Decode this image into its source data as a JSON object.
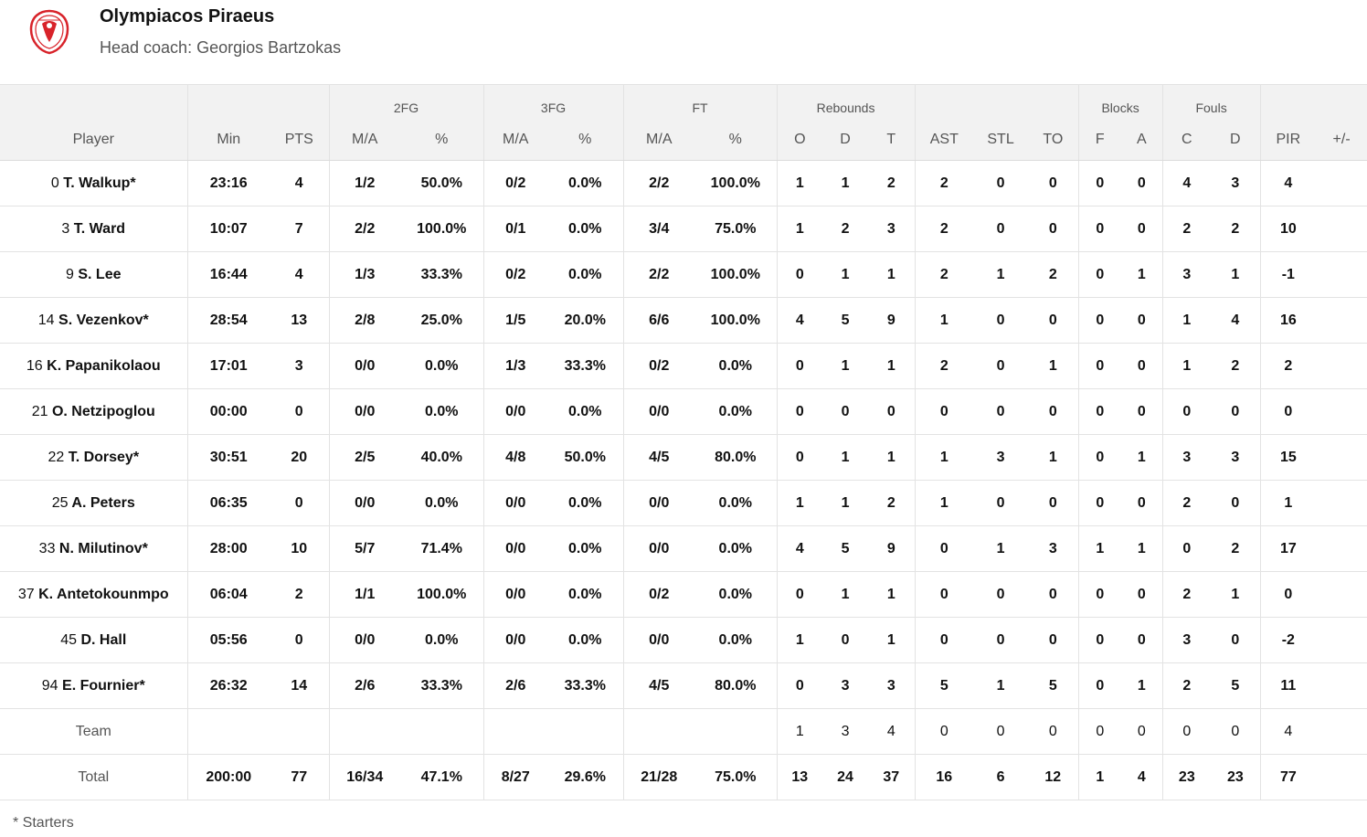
{
  "team": {
    "name": "Olympiacos Piraeus",
    "coach": "Head coach: Georgios Bartzokas",
    "logo_color": "#d8232a"
  },
  "groups": {
    "fg2": "2FG",
    "fg3": "3FG",
    "ft": "FT",
    "rebounds": "Rebounds",
    "blocks": "Blocks",
    "fouls": "Fouls"
  },
  "columns": {
    "player": "Player",
    "min": "Min",
    "pts": "PTS",
    "fg2_ma": "M/A",
    "fg2_pct": "%",
    "fg3_ma": "M/A",
    "fg3_pct": "%",
    "ft_ma": "M/A",
    "ft_pct": "%",
    "reb_o": "O",
    "reb_d": "D",
    "reb_t": "T",
    "ast": "AST",
    "stl": "STL",
    "to": "TO",
    "blk_f": "F",
    "blk_a": "A",
    "foul_c": "C",
    "foul_d": "D",
    "pir": "PIR",
    "pm": "+/-"
  },
  "players": [
    {
      "no": "0",
      "name": "T. Walkup*",
      "min": "23:16",
      "pts": "4",
      "fg2_ma": "1/2",
      "fg2_pct": "50.0%",
      "fg3_ma": "0/2",
      "fg3_pct": "0.0%",
      "ft_ma": "2/2",
      "ft_pct": "100.0%",
      "reb_o": "1",
      "reb_d": "1",
      "reb_t": "2",
      "ast": "2",
      "stl": "0",
      "to": "0",
      "blk_f": "0",
      "blk_a": "0",
      "foul_c": "4",
      "foul_d": "3",
      "pir": "4",
      "pm": ""
    },
    {
      "no": "3",
      "name": "T. Ward",
      "min": "10:07",
      "pts": "7",
      "fg2_ma": "2/2",
      "fg2_pct": "100.0%",
      "fg3_ma": "0/1",
      "fg3_pct": "0.0%",
      "ft_ma": "3/4",
      "ft_pct": "75.0%",
      "reb_o": "1",
      "reb_d": "2",
      "reb_t": "3",
      "ast": "2",
      "stl": "0",
      "to": "0",
      "blk_f": "0",
      "blk_a": "0",
      "foul_c": "2",
      "foul_d": "2",
      "pir": "10",
      "pm": ""
    },
    {
      "no": "9",
      "name": "S. Lee",
      "min": "16:44",
      "pts": "4",
      "fg2_ma": "1/3",
      "fg2_pct": "33.3%",
      "fg3_ma": "0/2",
      "fg3_pct": "0.0%",
      "ft_ma": "2/2",
      "ft_pct": "100.0%",
      "reb_o": "0",
      "reb_d": "1",
      "reb_t": "1",
      "ast": "2",
      "stl": "1",
      "to": "2",
      "blk_f": "0",
      "blk_a": "1",
      "foul_c": "3",
      "foul_d": "1",
      "pir": "-1",
      "pm": ""
    },
    {
      "no": "14",
      "name": "S. Vezenkov*",
      "min": "28:54",
      "pts": "13",
      "fg2_ma": "2/8",
      "fg2_pct": "25.0%",
      "fg3_ma": "1/5",
      "fg3_pct": "20.0%",
      "ft_ma": "6/6",
      "ft_pct": "100.0%",
      "reb_o": "4",
      "reb_d": "5",
      "reb_t": "9",
      "ast": "1",
      "stl": "0",
      "to": "0",
      "blk_f": "0",
      "blk_a": "0",
      "foul_c": "1",
      "foul_d": "4",
      "pir": "16",
      "pm": ""
    },
    {
      "no": "16",
      "name": "K. Papanikolaou",
      "min": "17:01",
      "pts": "3",
      "fg2_ma": "0/0",
      "fg2_pct": "0.0%",
      "fg3_ma": "1/3",
      "fg3_pct": "33.3%",
      "ft_ma": "0/2",
      "ft_pct": "0.0%",
      "reb_o": "0",
      "reb_d": "1",
      "reb_t": "1",
      "ast": "2",
      "stl": "0",
      "to": "1",
      "blk_f": "0",
      "blk_a": "0",
      "foul_c": "1",
      "foul_d": "2",
      "pir": "2",
      "pm": ""
    },
    {
      "no": "21",
      "name": "O. Netzipoglou",
      "min": "00:00",
      "pts": "0",
      "fg2_ma": "0/0",
      "fg2_pct": "0.0%",
      "fg3_ma": "0/0",
      "fg3_pct": "0.0%",
      "ft_ma": "0/0",
      "ft_pct": "0.0%",
      "reb_o": "0",
      "reb_d": "0",
      "reb_t": "0",
      "ast": "0",
      "stl": "0",
      "to": "0",
      "blk_f": "0",
      "blk_a": "0",
      "foul_c": "0",
      "foul_d": "0",
      "pir": "0",
      "pm": ""
    },
    {
      "no": "22",
      "name": "T. Dorsey*",
      "min": "30:51",
      "pts": "20",
      "fg2_ma": "2/5",
      "fg2_pct": "40.0%",
      "fg3_ma": "4/8",
      "fg3_pct": "50.0%",
      "ft_ma": "4/5",
      "ft_pct": "80.0%",
      "reb_o": "0",
      "reb_d": "1",
      "reb_t": "1",
      "ast": "1",
      "stl": "3",
      "to": "1",
      "blk_f": "0",
      "blk_a": "1",
      "foul_c": "3",
      "foul_d": "3",
      "pir": "15",
      "pm": ""
    },
    {
      "no": "25",
      "name": "A. Peters",
      "min": "06:35",
      "pts": "0",
      "fg2_ma": "0/0",
      "fg2_pct": "0.0%",
      "fg3_ma": "0/0",
      "fg3_pct": "0.0%",
      "ft_ma": "0/0",
      "ft_pct": "0.0%",
      "reb_o": "1",
      "reb_d": "1",
      "reb_t": "2",
      "ast": "1",
      "stl": "0",
      "to": "0",
      "blk_f": "0",
      "blk_a": "0",
      "foul_c": "2",
      "foul_d": "0",
      "pir": "1",
      "pm": ""
    },
    {
      "no": "33",
      "name": "N. Milutinov*",
      "min": "28:00",
      "pts": "10",
      "fg2_ma": "5/7",
      "fg2_pct": "71.4%",
      "fg3_ma": "0/0",
      "fg3_pct": "0.0%",
      "ft_ma": "0/0",
      "ft_pct": "0.0%",
      "reb_o": "4",
      "reb_d": "5",
      "reb_t": "9",
      "ast": "0",
      "stl": "1",
      "to": "3",
      "blk_f": "1",
      "blk_a": "1",
      "foul_c": "0",
      "foul_d": "2",
      "pir": "17",
      "pm": ""
    },
    {
      "no": "37",
      "name": "K. Antetokounmpo",
      "min": "06:04",
      "pts": "2",
      "fg2_ma": "1/1",
      "fg2_pct": "100.0%",
      "fg3_ma": "0/0",
      "fg3_pct": "0.0%",
      "ft_ma": "0/2",
      "ft_pct": "0.0%",
      "reb_o": "0",
      "reb_d": "1",
      "reb_t": "1",
      "ast": "0",
      "stl": "0",
      "to": "0",
      "blk_f": "0",
      "blk_a": "0",
      "foul_c": "2",
      "foul_d": "1",
      "pir": "0",
      "pm": ""
    },
    {
      "no": "45",
      "name": "D. Hall",
      "min": "05:56",
      "pts": "0",
      "fg2_ma": "0/0",
      "fg2_pct": "0.0%",
      "fg3_ma": "0/0",
      "fg3_pct": "0.0%",
      "ft_ma": "0/0",
      "ft_pct": "0.0%",
      "reb_o": "1",
      "reb_d": "0",
      "reb_t": "1",
      "ast": "0",
      "stl": "0",
      "to": "0",
      "blk_f": "0",
      "blk_a": "0",
      "foul_c": "3",
      "foul_d": "0",
      "pir": "-2",
      "pm": ""
    },
    {
      "no": "94",
      "name": "E. Fournier*",
      "min": "26:32",
      "pts": "14",
      "fg2_ma": "2/6",
      "fg2_pct": "33.3%",
      "fg3_ma": "2/6",
      "fg3_pct": "33.3%",
      "ft_ma": "4/5",
      "ft_pct": "80.0%",
      "reb_o": "0",
      "reb_d": "3",
      "reb_t": "3",
      "ast": "5",
      "stl": "1",
      "to": "5",
      "blk_f": "0",
      "blk_a": "1",
      "foul_c": "2",
      "foul_d": "5",
      "pir": "11",
      "pm": ""
    }
  ],
  "team_row": {
    "label": "Team",
    "min": "",
    "pts": "",
    "fg2_ma": "",
    "fg2_pct": "",
    "fg3_ma": "",
    "fg3_pct": "",
    "ft_ma": "",
    "ft_pct": "",
    "reb_o": "1",
    "reb_d": "3",
    "reb_t": "4",
    "ast": "0",
    "stl": "0",
    "to": "0",
    "blk_f": "0",
    "blk_a": "0",
    "foul_c": "0",
    "foul_d": "0",
    "pir": "4",
    "pm": ""
  },
  "total_row": {
    "label": "Total",
    "min": "200:00",
    "pts": "77",
    "fg2_ma": "16/34",
    "fg2_pct": "47.1%",
    "fg3_ma": "8/27",
    "fg3_pct": "29.6%",
    "ft_ma": "21/28",
    "ft_pct": "75.0%",
    "reb_o": "13",
    "reb_d": "24",
    "reb_t": "37",
    "ast": "16",
    "stl": "6",
    "to": "12",
    "blk_f": "1",
    "blk_a": "4",
    "foul_c": "23",
    "foul_d": "23",
    "pir": "77",
    "pm": ""
  },
  "footnote": "* Starters"
}
